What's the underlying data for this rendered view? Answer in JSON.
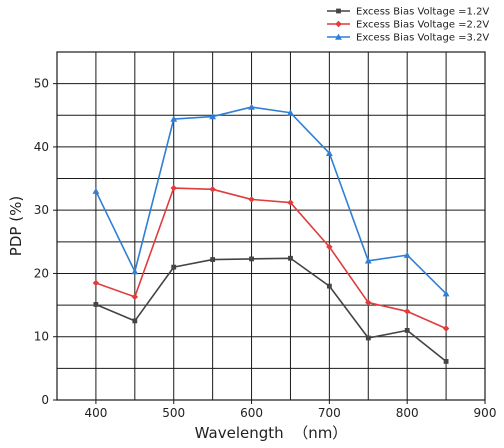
{
  "chart_data": {
    "type": "line",
    "title": "",
    "xlabel": "Wavelength  （nm）",
    "ylabel": "PDP (%)",
    "x": [
      400,
      450,
      500,
      550,
      600,
      650,
      700,
      750,
      800,
      850
    ],
    "xlim": [
      350,
      900
    ],
    "ylim": [
      0,
      55
    ],
    "xticks": [
      400,
      500,
      600,
      700,
      800,
      900
    ],
    "yticks": [
      0,
      10,
      20,
      30,
      40,
      50
    ],
    "grid": true,
    "legend_position": "top-right, outside plot",
    "series": [
      {
        "name": "Excess Bias Voltage =1.2V",
        "color": "#444444",
        "marker": "square",
        "values": [
          15.1,
          12.5,
          21.0,
          22.2,
          22.3,
          22.4,
          18.0,
          9.8,
          11.0,
          6.1
        ]
      },
      {
        "name": "Excess Bias Voltage =2.2V",
        "color": "#e03c3c",
        "marker": "diamond",
        "values": [
          18.5,
          16.3,
          33.5,
          33.3,
          31.7,
          31.2,
          24.2,
          15.4,
          14.0,
          11.3
        ]
      },
      {
        "name": "Excess Bias Voltage =3.2V",
        "color": "#2f7fd6",
        "marker": "triangle",
        "values": [
          33.0,
          20.3,
          44.4,
          44.8,
          46.3,
          45.4,
          39.0,
          22.0,
          22.9,
          16.8
        ]
      }
    ]
  }
}
